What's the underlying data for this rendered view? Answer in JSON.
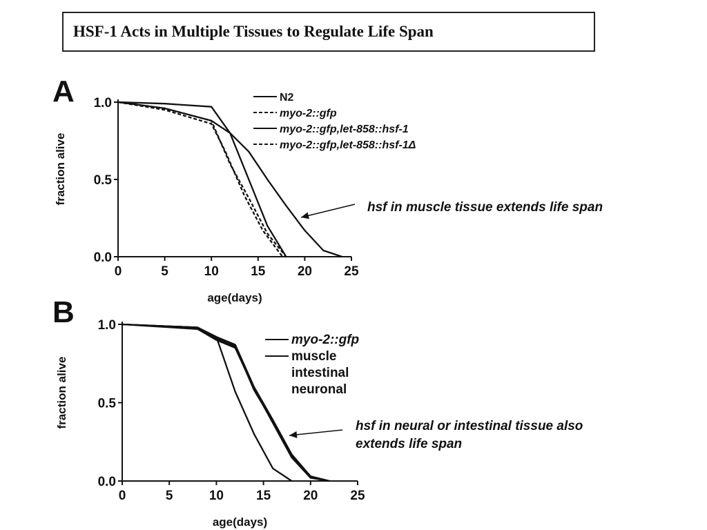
{
  "title": "HSF-1 Acts in Multiple Tissues to Regulate Life Span",
  "annotations": {
    "a": "hsf in muscle tissue extends life span",
    "b_line1": "hsf in neural or intestinal tissue also",
    "b_line2": "extends life span"
  },
  "chart_data": [
    {
      "panel": "A",
      "type": "line",
      "xlabel": "age(days)",
      "ylabel": "fraction alive",
      "xlim": [
        0,
        25
      ],
      "ylim": [
        0,
        1
      ],
      "xticks": [
        "0",
        "5",
        "10",
        "15",
        "20",
        "25"
      ],
      "yticks": [
        "0.0",
        "0.5",
        "1.0"
      ],
      "legend_position": "top-right",
      "series": [
        {
          "name": "N2",
          "dash": "solid",
          "italic": false,
          "points": [
            [
              0,
              1.0
            ],
            [
              5,
              0.99
            ],
            [
              10,
              0.97
            ],
            [
              12,
              0.8
            ],
            [
              14,
              0.5
            ],
            [
              16,
              0.2
            ],
            [
              18,
              0.0
            ]
          ]
        },
        {
          "name": "myo-2::gfp",
          "dash": "dashed",
          "italic": true,
          "points": [
            [
              0,
              1.0
            ],
            [
              5,
              0.96
            ],
            [
              10,
              0.88
            ],
            [
              12,
              0.6
            ],
            [
              14,
              0.38
            ],
            [
              16,
              0.15
            ],
            [
              18,
              0.0
            ]
          ]
        },
        {
          "name": "myo-2::gfp,let-858::hsf-1",
          "dash": "solid",
          "italic": true,
          "points": [
            [
              0,
              1.0
            ],
            [
              5,
              0.96
            ],
            [
              10,
              0.88
            ],
            [
              12,
              0.8
            ],
            [
              14,
              0.68
            ],
            [
              16,
              0.5
            ],
            [
              18,
              0.33
            ],
            [
              20,
              0.17
            ],
            [
              22,
              0.04
            ],
            [
              24,
              0.0
            ]
          ]
        },
        {
          "name": "myo-2::gfp,let-858::hsf-1Δ",
          "dash": "dashed",
          "italic": true,
          "points": [
            [
              0,
              1.0
            ],
            [
              5,
              0.95
            ],
            [
              10,
              0.86
            ],
            [
              11.5,
              0.68
            ],
            [
              13.5,
              0.4
            ],
            [
              15.5,
              0.17
            ],
            [
              17.5,
              0.01
            ],
            [
              18,
              0.0
            ]
          ]
        }
      ]
    },
    {
      "panel": "B",
      "type": "line",
      "xlabel": "age(days)",
      "ylabel": "fraction alive",
      "xlim": [
        0,
        25
      ],
      "ylim": [
        0,
        1
      ],
      "xticks": [
        "0",
        "5",
        "10",
        "15",
        "20",
        "25"
      ],
      "yticks": [
        "0.0",
        "0.5",
        "1.0"
      ],
      "legend_position": "top-right",
      "series": [
        {
          "name": "myo-2::gfp",
          "dash": "solid",
          "italic": true,
          "points": [
            [
              0,
              1.0
            ],
            [
              8,
              0.98
            ],
            [
              10,
              0.92
            ],
            [
              12,
              0.57
            ],
            [
              14,
              0.3
            ],
            [
              16,
              0.08
            ],
            [
              18,
              0.0
            ]
          ]
        },
        {
          "name": "muscle",
          "dash": "solid",
          "italic": false,
          "points": [
            [
              0,
              1.0
            ],
            [
              8,
              0.98
            ],
            [
              10,
              0.92
            ],
            [
              12,
              0.87
            ],
            [
              14,
              0.6
            ],
            [
              16,
              0.39
            ],
            [
              18,
              0.17
            ],
            [
              20,
              0.03
            ],
            [
              22,
              0.0
            ]
          ]
        },
        {
          "name": "intestinal",
          "dash": "solid",
          "italic": false,
          "points": [
            [
              0,
              1.0
            ],
            [
              8,
              0.98
            ],
            [
              10,
              0.91
            ],
            [
              12,
              0.86
            ],
            [
              14,
              0.58
            ],
            [
              16,
              0.38
            ],
            [
              18,
              0.16
            ],
            [
              20,
              0.03
            ],
            [
              22,
              0.0
            ]
          ]
        },
        {
          "name": "neuronal",
          "dash": "solid",
          "italic": false,
          "points": [
            [
              0,
              1.0
            ],
            [
              8,
              0.97
            ],
            [
              10,
              0.9
            ],
            [
              12,
              0.85
            ],
            [
              14,
              0.59
            ],
            [
              16,
              0.37
            ],
            [
              18,
              0.15
            ],
            [
              20,
              0.02
            ],
            [
              22,
              0.0
            ]
          ]
        }
      ]
    }
  ]
}
